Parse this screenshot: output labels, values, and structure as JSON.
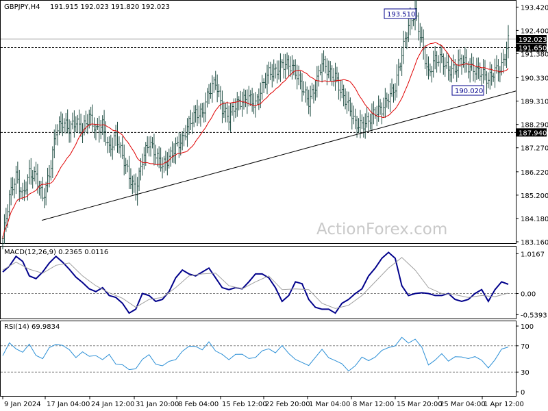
{
  "header": {
    "symbol": "GBPJPY,H4",
    "ohlc": "191.915 192.023 191.820 192.023"
  },
  "watermark": "ActionForex.com",
  "colors": {
    "candle": "#1f4d43",
    "ma": "#e00000",
    "trendline": "#000000",
    "macd_main": "#00008b",
    "macd_signal": "#a0a0a0",
    "rsi": "#2b8fd6",
    "grid_dash": "#808080"
  },
  "chart_data": [
    {
      "type": "candlestick",
      "panel": "price",
      "y_ticks": [
        "193.420",
        "192.400",
        "191.380",
        "190.330",
        "189.310",
        "188.290",
        "187.270",
        "186.220",
        "185.200",
        "184.180",
        "183.160"
      ],
      "ylim": [
        183.1,
        193.7
      ],
      "price_tags": [
        {
          "label": "192.023",
          "value": 192.023,
          "kind": "current"
        },
        {
          "label": "191.650",
          "value": 191.65,
          "kind": "level"
        },
        {
          "label": "187.940",
          "value": 187.94,
          "kind": "level"
        }
      ],
      "annotations": [
        {
          "label": "193.510",
          "value": 193.51,
          "at": "15 Mar 20:00"
        },
        {
          "label": "190.020",
          "value": 190.02,
          "at": "1 Apr 04:00"
        }
      ],
      "moving_average_color": "red",
      "trendline": {
        "from": {
          "time": "12 Jan 2024",
          "value": 184.1
        },
        "to": {
          "time": "4 Apr 2024",
          "value": 189.75
        }
      },
      "path_points": [
        [
          0,
          183.3
        ],
        [
          4,
          185.0
        ],
        [
          8,
          186.0
        ],
        [
          12,
          185.3
        ],
        [
          16,
          186.2
        ],
        [
          20,
          185.9
        ],
        [
          24,
          185.0
        ],
        [
          28,
          186.2
        ],
        [
          32,
          188.1
        ],
        [
          36,
          188.3
        ],
        [
          40,
          188.0
        ],
        [
          44,
          188.5
        ],
        [
          48,
          188.2
        ],
        [
          52,
          188.6
        ],
        [
          56,
          187.9
        ],
        [
          60,
          188.3
        ],
        [
          64,
          187.3
        ],
        [
          68,
          187.8
        ],
        [
          72,
          186.8
        ],
        [
          76,
          186.0
        ],
        [
          80,
          185.5
        ],
        [
          84,
          186.8
        ],
        [
          88,
          187.4
        ],
        [
          92,
          186.9
        ],
        [
          96,
          186.6
        ],
        [
          100,
          186.9
        ],
        [
          104,
          187.2
        ],
        [
          108,
          187.5
        ],
        [
          112,
          188.4
        ],
        [
          116,
          188.9
        ],
        [
          120,
          188.7
        ],
        [
          124,
          189.6
        ],
        [
          128,
          190.2
        ],
        [
          132,
          189.1
        ],
        [
          136,
          188.6
        ],
        [
          140,
          189.0
        ],
        [
          144,
          189.3
        ],
        [
          148,
          189.6
        ],
        [
          152,
          189.2
        ],
        [
          156,
          189.8
        ],
        [
          160,
          190.5
        ],
        [
          164,
          190.7
        ],
        [
          168,
          191.0
        ],
        [
          172,
          190.8
        ],
        [
          176,
          190.5
        ],
        [
          180,
          190.0
        ],
        [
          184,
          189.4
        ],
        [
          188,
          189.9
        ],
        [
          192,
          190.9
        ],
        [
          196,
          190.6
        ],
        [
          200,
          190.5
        ],
        [
          204,
          189.6
        ],
        [
          208,
          189.0
        ],
        [
          212,
          188.3
        ],
        [
          216,
          188.4
        ],
        [
          220,
          188.5
        ],
        [
          224,
          188.7
        ],
        [
          228,
          188.9
        ],
        [
          232,
          189.6
        ],
        [
          236,
          190.0
        ],
        [
          240,
          191.3
        ],
        [
          244,
          192.5
        ],
        [
          248,
          193.3
        ],
        [
          252,
          192.0
        ],
        [
          256,
          190.4
        ],
        [
          260,
          191.0
        ],
        [
          264,
          191.2
        ],
        [
          268,
          190.8
        ],
        [
          272,
          190.7
        ],
        [
          276,
          191.0
        ],
        [
          280,
          190.8
        ],
        [
          284,
          190.8
        ],
        [
          288,
          190.6
        ],
        [
          292,
          190.1
        ],
        [
          296,
          190.6
        ],
        [
          300,
          190.9
        ],
        [
          304,
          192.02
        ]
      ]
    },
    {
      "type": "line",
      "panel": "macd",
      "title": "MACD(12,26,9) 0.2365 0.0116",
      "y_ticks": [
        "1.0167",
        "0.00",
        "-0.5393"
      ],
      "ylim": [
        -0.62,
        1.18
      ],
      "series": [
        {
          "role": "main",
          "x": [
            0,
            4,
            8,
            12,
            16,
            20,
            24,
            28,
            32,
            36,
            40,
            44,
            48,
            52,
            56,
            60,
            64,
            68,
            72,
            76,
            80,
            84,
            88,
            92,
            96,
            100,
            104,
            108,
            112,
            116,
            120,
            124,
            128,
            132,
            136,
            140,
            144,
            148,
            152,
            156,
            160,
            164,
            168,
            172,
            176,
            180,
            184,
            188,
            192,
            196,
            200,
            204,
            208,
            212,
            216,
            220,
            224,
            228,
            232,
            236,
            240,
            244,
            248,
            252,
            256,
            260,
            264,
            268,
            272,
            276,
            280,
            284,
            288,
            292,
            296,
            300,
            304
          ],
          "values": [
            0.55,
            0.7,
            0.95,
            0.82,
            0.45,
            0.38,
            0.55,
            0.78,
            0.95,
            0.8,
            0.62,
            0.42,
            0.28,
            0.12,
            0.05,
            0.15,
            -0.05,
            -0.1,
            -0.25,
            -0.5,
            -0.4,
            0.0,
            -0.05,
            -0.2,
            -0.15,
            0.05,
            0.4,
            0.6,
            0.5,
            0.45,
            0.55,
            0.65,
            0.4,
            0.15,
            0.1,
            0.15,
            0.12,
            0.3,
            0.5,
            0.5,
            0.4,
            0.15,
            -0.2,
            -0.05,
            0.3,
            0.25,
            -0.15,
            -0.35,
            -0.4,
            -0.4,
            -0.5,
            -0.25,
            -0.15,
            0.0,
            0.12,
            0.45,
            0.65,
            0.9,
            1.05,
            0.9,
            0.2,
            -0.05,
            0.0,
            0.02,
            0.0,
            -0.05,
            -0.05,
            0.0,
            -0.15,
            -0.2,
            -0.15,
            0.0,
            0.1,
            -0.2,
            0.1,
            0.3,
            0.2365
          ]
        },
        {
          "role": "signal",
          "x": [
            0,
            8,
            16,
            24,
            32,
            40,
            48,
            56,
            64,
            72,
            80,
            88,
            96,
            104,
            112,
            120,
            128,
            136,
            144,
            152,
            160,
            168,
            176,
            184,
            192,
            200,
            208,
            216,
            224,
            232,
            240,
            248,
            256,
            264,
            272,
            280,
            288,
            296,
            304
          ],
          "values": [
            0.6,
            0.8,
            0.62,
            0.52,
            0.72,
            0.78,
            0.45,
            0.2,
            0.02,
            -0.12,
            -0.35,
            -0.15,
            -0.1,
            0.15,
            0.45,
            0.5,
            0.52,
            0.2,
            0.12,
            0.3,
            0.45,
            0.1,
            0.12,
            0.1,
            -0.25,
            -0.38,
            -0.3,
            -0.05,
            0.3,
            0.65,
            0.92,
            0.6,
            0.15,
            0.0,
            -0.03,
            -0.1,
            -0.05,
            -0.08,
            0.0116
          ]
        }
      ]
    },
    {
      "type": "line",
      "panel": "rsi",
      "title": "RSI(14) 69.9834",
      "y_ticks": [
        "100",
        "70",
        "30",
        "0"
      ],
      "ylim": [
        0,
        100
      ],
      "levels": [
        70,
        30
      ],
      "series": [
        {
          "role": "rsi",
          "x": [
            0,
            4,
            8,
            12,
            16,
            20,
            24,
            28,
            32,
            36,
            40,
            44,
            48,
            52,
            56,
            60,
            64,
            68,
            72,
            76,
            80,
            84,
            88,
            92,
            96,
            100,
            104,
            108,
            112,
            116,
            120,
            124,
            128,
            132,
            136,
            140,
            144,
            148,
            152,
            156,
            160,
            164,
            168,
            172,
            176,
            180,
            184,
            188,
            192,
            196,
            200,
            204,
            208,
            212,
            216,
            220,
            224,
            228,
            232,
            236,
            240,
            244,
            248,
            252,
            256,
            260,
            264,
            268,
            272,
            276,
            280,
            284,
            288,
            292,
            296,
            300,
            304
          ],
          "values": [
            55,
            72,
            68,
            60,
            70,
            58,
            50,
            65,
            75,
            70,
            62,
            55,
            60,
            52,
            58,
            48,
            55,
            45,
            40,
            32,
            38,
            48,
            55,
            45,
            38,
            45,
            52,
            60,
            68,
            72,
            62,
            75,
            65,
            55,
            48,
            60,
            55,
            50,
            55,
            60,
            65,
            62,
            68,
            58,
            52,
            42,
            40,
            55,
            62,
            52,
            50,
            40,
            32,
            42,
            50,
            48,
            55,
            60,
            68,
            72,
            80,
            75,
            82,
            65,
            42,
            50,
            55,
            48,
            55,
            50,
            52,
            55,
            45,
            38,
            50,
            62,
            69.98
          ]
        }
      ]
    }
  ],
  "x_axis": {
    "ticks": [
      "9 Jan 2024",
      "17 Jan 04:00",
      "24 Jan 12:00",
      "31 Jan 20:00",
      "8 Feb 04:00",
      "15 Feb 12:00",
      "22 Feb 20:00",
      "1 Mar 04:00",
      "8 Mar 12:00",
      "15 Mar 20:00",
      "25 Mar 04:00",
      "1 Apr 12:00"
    ]
  }
}
